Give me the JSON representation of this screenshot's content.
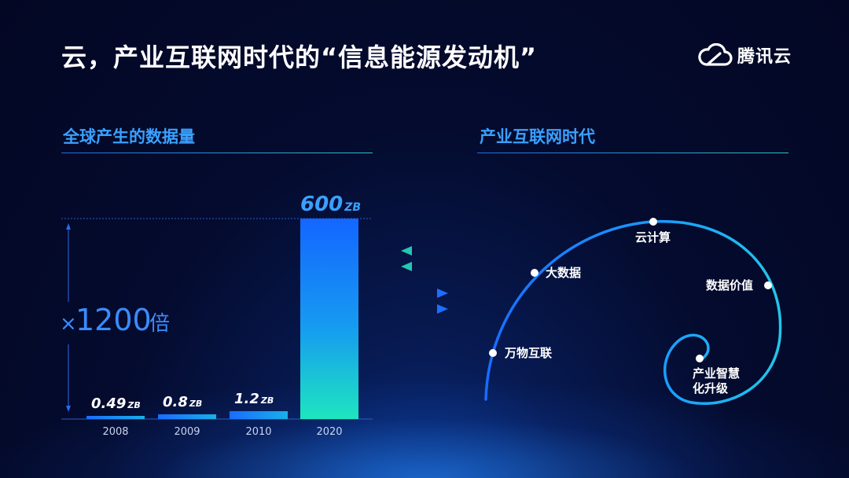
{
  "title": "云，产业互联网时代的“信息能源发动机”",
  "logo": {
    "icon": "tencent-cloud-icon",
    "text": "腾讯云"
  },
  "left_section": {
    "title": "全球产生的数据量"
  },
  "right_section": {
    "title": "产业互联网时代"
  },
  "multiplier": {
    "symbol": "×",
    "value": "1200",
    "unit": "倍"
  },
  "chart_data": {
    "type": "bar",
    "categories": [
      "2008",
      "2009",
      "2010",
      "2020"
    ],
    "values": [
      0.49,
      0.8,
      1.2,
      600
    ],
    "value_labels": [
      "0.49",
      "0.8",
      "1.2",
      "600"
    ],
    "unit": "ZB",
    "title": "全球产生的数据量",
    "xlabel": "",
    "ylabel": "",
    "ylim": [
      0,
      600
    ],
    "grid": false
  },
  "spiral": {
    "nodes": [
      "万物互联",
      "大数据",
      "云计算",
      "数据价值",
      "产业智慧",
      "化升级"
    ]
  },
  "colors": {
    "accent": "#3aa0ff",
    "teal": "#25c6b0",
    "bar_top": "#1a6cff",
    "bar_bottom": "#1ee0c0"
  }
}
